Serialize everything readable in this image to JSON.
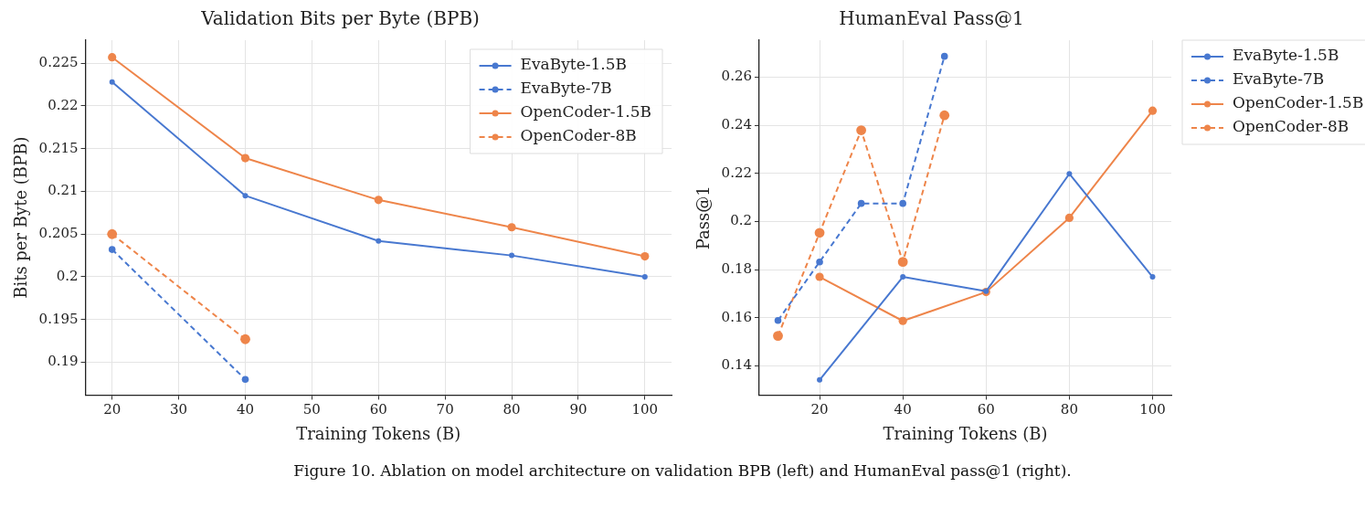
{
  "chart_data": [
    {
      "type": "line",
      "title": "Validation Bits per Byte (BPB)",
      "xlabel": "Training Tokens (B)",
      "ylabel": "Bits per Byte (BPB)",
      "xlim": [
        16,
        104
      ],
      "xticks": [
        20,
        30,
        40,
        50,
        60,
        70,
        80,
        90,
        100
      ],
      "ylim": [
        0.18616,
        0.2277
      ],
      "yticks": [
        0.19,
        0.195,
        0.2,
        0.205,
        0.21,
        0.215,
        0.22,
        0.225
      ],
      "grid": true,
      "legend": "top right",
      "marker": "circle",
      "series": [
        {
          "name": "EvaByte-1.5B",
          "color": "#4878d0",
          "line_style": "solid",
          "x": [
            20,
            40,
            60,
            80,
            100
          ],
          "values": [
            0.2228,
            0.2095,
            0.2042,
            0.2025,
            0.2
          ]
        },
        {
          "name": "EvaByte-7B",
          "color": "#4878d0",
          "line_style": "dashed",
          "x": [
            20,
            40
          ],
          "values": [
            0.2032,
            0.188
          ]
        },
        {
          "name": "OpenCoder-1.5B",
          "color": "#ee854a",
          "line_style": "solid",
          "x": [
            20,
            40,
            60,
            80,
            100
          ],
          "values": [
            0.2257,
            0.2139,
            0.209,
            0.2058,
            0.2024
          ]
        },
        {
          "name": "OpenCoder-8B",
          "color": "#ee854a",
          "line_style": "dashed",
          "x": [
            20,
            40
          ],
          "values": [
            0.205,
            0.1927
          ]
        }
      ]
    },
    {
      "type": "line",
      "title": "HumanEval Pass@1",
      "xlabel": "Training Tokens (B)",
      "ylabel": "Pass@1",
      "xlim": [
        5.5,
        104.5
      ],
      "xticks": [
        20,
        40,
        60,
        80,
        100
      ],
      "ylim": [
        0.1279,
        0.2753
      ],
      "yticks": [
        0.14,
        0.16,
        0.18,
        0.2,
        0.22,
        0.24,
        0.26
      ],
      "grid": true,
      "legend": "right",
      "marker": "circle",
      "annotations": [
        "Figure 10. Ablation on model architecture on validation BPB (left) and HumanEval pass@1 (right)."
      ],
      "series": [
        {
          "name": "EvaByte-1.5B",
          "color": "#4878d0",
          "line_style": "solid",
          "x": [
            20,
            40,
            60,
            80,
            100
          ],
          "values": [
            0.1342,
            0.177,
            0.171,
            0.2198,
            0.177
          ]
        },
        {
          "name": "EvaByte-7B",
          "color": "#4878d0",
          "line_style": "dashed",
          "x": [
            10,
            20,
            30,
            40,
            50
          ],
          "values": [
            0.1589,
            0.1832,
            0.2075,
            0.2075,
            0.2686
          ]
        },
        {
          "name": "OpenCoder-1.5B",
          "color": "#ee854a",
          "line_style": "solid",
          "x": [
            20,
            40,
            60,
            80,
            100
          ],
          "values": [
            0.177,
            0.1587,
            0.1707,
            0.2015,
            0.246
          ]
        },
        {
          "name": "OpenCoder-8B",
          "color": "#ee854a",
          "line_style": "dashed",
          "x": [
            10,
            20,
            30,
            40,
            50
          ],
          "values": [
            0.1525,
            0.1953,
            0.2379,
            0.1832,
            0.2441
          ]
        }
      ]
    }
  ]
}
